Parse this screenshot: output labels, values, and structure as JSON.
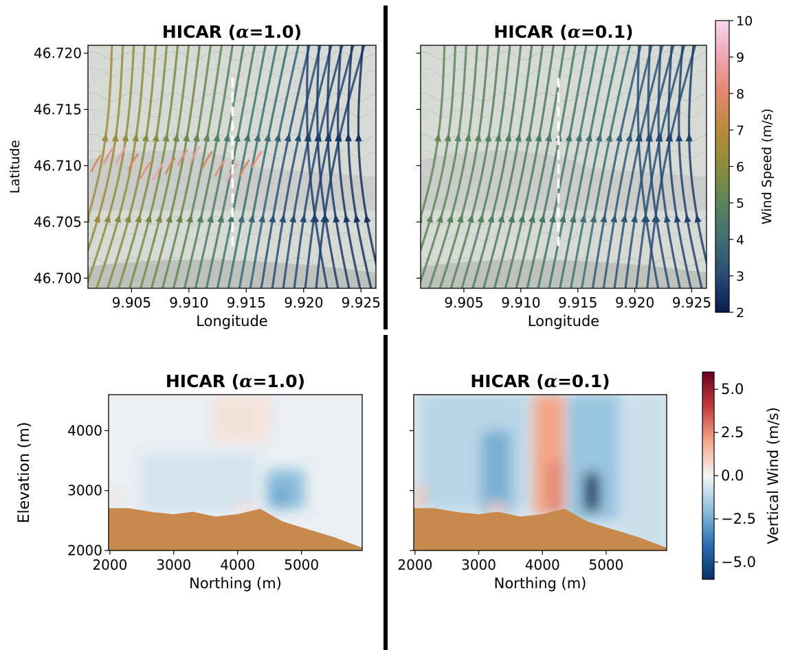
{
  "figure": {
    "colorbar_speed": {
      "label": "Wind Speed (m/s)",
      "range": [
        2,
        10
      ],
      "ticks": [
        2,
        3,
        4,
        5,
        6,
        7,
        8,
        9,
        10
      ],
      "colors": [
        "#0a1c4b",
        "#294a76",
        "#3f6e74",
        "#5a855a",
        "#8b8d3c",
        "#b98a3d",
        "#e0876a",
        "#f0a3b0",
        "#f8d6ef"
      ]
    },
    "colorbar_vertical": {
      "label": "Vertical Wind (m/s)",
      "range": [
        -6,
        6
      ],
      "ticks": [
        -5.0,
        -2.5,
        0.0,
        2.5,
        5.0
      ],
      "tick_labels": [
        "−5.0",
        "−2.5",
        "0.0",
        "2.5",
        "5.0"
      ],
      "colors": [
        "#073064",
        "#2b6fb1",
        "#8dbfdc",
        "#f6f6f6",
        "#f3a688",
        "#c43c3b",
        "#67001f"
      ]
    },
    "terrain_color": "#c8894d"
  },
  "chart_data": [
    {
      "type": "streamplot",
      "title": "HICAR (α=1.0)",
      "title_prefix": "HICAR (",
      "title_alpha": "α",
      "title_suffix": "=1.0)",
      "xlabel": "Longitude",
      "ylabel": "Latitude",
      "xlim": [
        9.9012,
        9.9263
      ],
      "ylim": [
        46.6991,
        46.7207
      ],
      "xticks": [
        9.905,
        9.91,
        9.915,
        9.92,
        9.925
      ],
      "xtick_labels": [
        "9.905",
        "9.910",
        "9.915",
        "9.920",
        "9.925"
      ],
      "yticks": [
        46.7,
        46.705,
        46.71,
        46.715,
        46.72
      ],
      "ytick_labels": [
        "46.700",
        "46.705",
        "46.710",
        "46.715",
        "46.720"
      ],
      "transect_longitude": 9.9138,
      "flow": "mostly northward wind, 6–9 m/s over the central ridge (~46.710) in the west, 2–4 m/s in the east"
    },
    {
      "type": "streamplot",
      "title": "HICAR (α=0.1)",
      "title_prefix": "HICAR (",
      "title_alpha": "α",
      "title_suffix": "=0.1)",
      "xlabel": "Longitude",
      "ylabel": "",
      "xlim": [
        9.9012,
        9.9263
      ],
      "ylim": [
        46.6991,
        46.7207
      ],
      "xticks": [
        9.905,
        9.91,
        9.915,
        9.92,
        9.925
      ],
      "xtick_labels": [
        "9.905",
        "9.910",
        "9.915",
        "9.920",
        "9.925"
      ],
      "yticks": [
        46.7,
        46.705,
        46.71,
        46.715,
        46.72
      ],
      "ytick_labels": [
        "",
        "",
        "",
        "",
        ""
      ],
      "transect_longitude": 9.9133,
      "flow": "mostly northward wind at 4–6 m/s, calmer (2–3 m/s) in the eastern part"
    },
    {
      "type": "heatmap",
      "title": "HICAR (α=1.0)",
      "title_prefix": "HICAR (",
      "title_alpha": "α",
      "title_suffix": "=1.0)",
      "xlabel": "Northing (m)",
      "ylabel": "Elevation (m)",
      "xlim": [
        1980,
        5950
      ],
      "ylim": [
        2000,
        4600
      ],
      "xticks": [
        2000,
        3000,
        4000,
        5000
      ],
      "xtick_labels": [
        "2000",
        "3000",
        "4000",
        "5000"
      ],
      "yticks": [
        2000,
        3000,
        4000
      ],
      "ytick_labels": [
        "2000",
        "3000",
        "4000"
      ],
      "terrain": {
        "x": [
          1980,
          2300,
          2700,
          3000,
          3300,
          3650,
          4000,
          4350,
          4700,
          5000,
          5500,
          5950
        ],
        "elev": [
          2700,
          2700,
          2630,
          2600,
          2640,
          2560,
          2600,
          2690,
          2480,
          2380,
          2220,
          2040
        ]
      },
      "features": [
        {
          "x": [
            4450,
            5050
          ],
          "z": [
            2700,
            3350
          ],
          "w": -2.0
        },
        {
          "x": [
            4550,
            4800
          ],
          "z": [
            2700,
            3100
          ],
          "w": -2.6
        },
        {
          "x": [
            2500,
            4300
          ],
          "z": [
            2650,
            3600
          ],
          "w": -0.7
        },
        {
          "x": [
            3600,
            4500
          ],
          "z": [
            3800,
            4600
          ],
          "w": 0.5
        },
        {
          "x": [
            2000,
            2150
          ],
          "z": [
            2700,
            3000
          ],
          "w": 0.5
        },
        {
          "x": [
            3950,
            4250
          ],
          "z": [
            2600,
            2800
          ],
          "w": 0.5
        }
      ]
    },
    {
      "type": "heatmap",
      "title": "HICAR (α=0.1)",
      "title_prefix": "HICAR (",
      "title_alpha": "α",
      "title_suffix": "=0.1)",
      "xlabel": "Northing (m)",
      "ylabel": "",
      "xlim": [
        1980,
        5950
      ],
      "ylim": [
        2000,
        4600
      ],
      "xticks": [
        2000,
        3000,
        4000,
        5000
      ],
      "xtick_labels": [
        "2000",
        "3000",
        "4000",
        "5000"
      ],
      "yticks": [
        2000,
        3000,
        4000
      ],
      "ytick_labels": [
        "",
        "",
        ""
      ],
      "terrain": {
        "x": [
          1980,
          2300,
          2700,
          3000,
          3300,
          3650,
          4000,
          4350,
          4700,
          5000,
          5500,
          5950
        ],
        "elev": [
          2700,
          2700,
          2630,
          2600,
          2640,
          2560,
          2600,
          2690,
          2480,
          2380,
          2220,
          2040
        ]
      },
      "features": [
        {
          "x": [
            2100,
            3750
          ],
          "z": [
            2700,
            4600
          ],
          "w": -1.2
        },
        {
          "x": [
            3050,
            3500
          ],
          "z": [
            2600,
            4000
          ],
          "w": -2.4
        },
        {
          "x": [
            3850,
            4350
          ],
          "z": [
            2600,
            4600
          ],
          "w": 2.0
        },
        {
          "x": [
            4100,
            4300
          ],
          "z": [
            2600,
            3500
          ],
          "w": 2.7
        },
        {
          "x": [
            4400,
            5500
          ],
          "z": [
            2500,
            4600
          ],
          "w": -1.8
        },
        {
          "x": [
            4650,
            4900
          ],
          "z": [
            2650,
            3300
          ],
          "w": -6.0
        },
        {
          "x": [
            2000,
            2150
          ],
          "z": [
            2700,
            3100
          ],
          "w": 1.3
        },
        {
          "x": [
            3150,
            3400
          ],
          "z": [
            2600,
            2800
          ],
          "w": 1.0
        },
        {
          "x": [
            5200,
            5950
          ],
          "z": [
            2000,
            4600
          ],
          "w": -0.8
        }
      ]
    }
  ]
}
